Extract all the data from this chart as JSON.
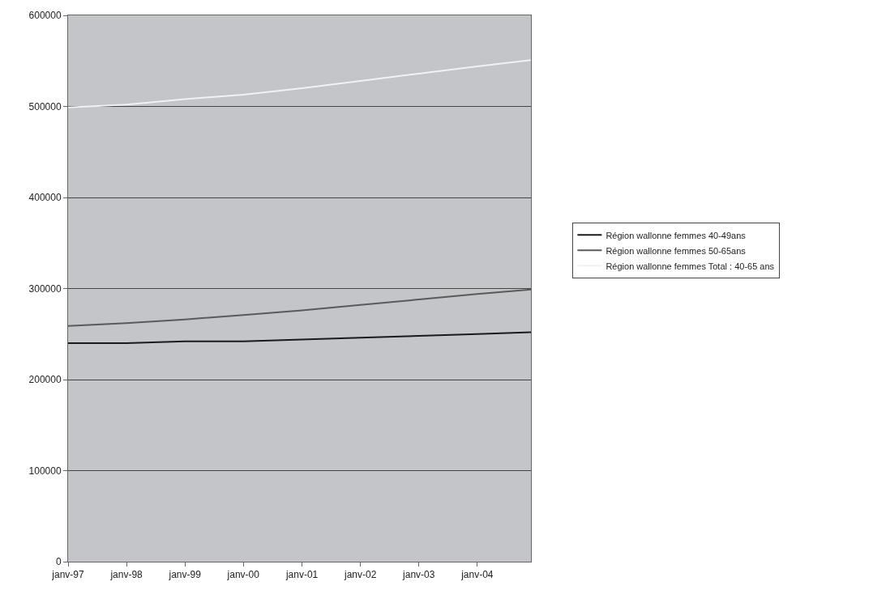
{
  "chart_data": {
    "type": "line",
    "x": [
      "1997-01",
      "1998-01",
      "1999-01",
      "2000-01",
      "2001-01",
      "2002-01",
      "2003-01",
      "2004-01",
      "2004-12"
    ],
    "series": [
      {
        "name": "Région wallonne femmes 40-49ans",
        "color": "#1a1a1a",
        "values": [
          240000,
          240000,
          242000,
          242000,
          244000,
          246000,
          248000,
          250000,
          252000
        ]
      },
      {
        "name": "Région wallonne femmes 50-65ans",
        "color": "#5a5a5a",
        "values": [
          259000,
          262000,
          266000,
          271000,
          276000,
          282000,
          288000,
          294000,
          299000
        ]
      },
      {
        "name": "Région wallonne femmes Total : 40-65 ans",
        "color": "#f2f2f2",
        "values": [
          499000,
          502000,
          508000,
          513000,
          520000,
          528000,
          536000,
          544000,
          551000
        ]
      }
    ],
    "xlim": [
      "1997-01",
      "2004-12"
    ],
    "xticks": [
      {
        "value": "1997-01",
        "label": "janv-97"
      },
      {
        "value": "1998-01",
        "label": "janv-98"
      },
      {
        "value": "1999-01",
        "label": "janv-99"
      },
      {
        "value": "2000-01",
        "label": "janv-00"
      },
      {
        "value": "2001-01",
        "label": "janv-01"
      },
      {
        "value": "2002-01",
        "label": "janv-02"
      },
      {
        "value": "2003-01",
        "label": "janv-03"
      },
      {
        "value": "2004-01",
        "label": "janv-04"
      }
    ],
    "ylim": [
      0,
      600000
    ],
    "yticks": [
      0,
      100000,
      200000,
      300000,
      400000,
      500000,
      600000
    ],
    "grid": "y",
    "legend": "right",
    "marker": "none",
    "line_style": "solid"
  }
}
